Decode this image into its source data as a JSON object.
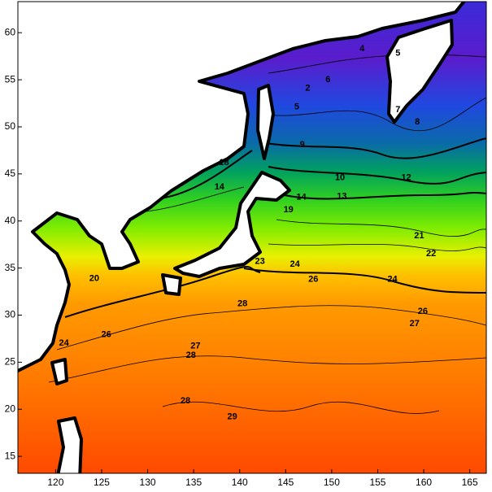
{
  "chart_data": {
    "type": "contour-map",
    "xlim": [
      115.9,
      166.8
    ],
    "ylim": [
      13.2,
      63.3
    ],
    "xticks": [
      120,
      125,
      130,
      135,
      140,
      145,
      150,
      155,
      160,
      165
    ],
    "yticks": [
      15,
      20,
      25,
      30,
      35,
      40,
      45,
      50,
      55,
      60
    ],
    "contour_labels": [
      {
        "x": 147.4,
        "y": 54.1,
        "value": 2
      },
      {
        "x": 153.3,
        "y": 58.3,
        "value": 4
      },
      {
        "x": 157.2,
        "y": 57.8,
        "value": 5
      },
      {
        "x": 146.2,
        "y": 52.1,
        "value": 5
      },
      {
        "x": 149.6,
        "y": 55.0,
        "value": 6
      },
      {
        "x": 157.2,
        "y": 51.8,
        "value": 7
      },
      {
        "x": 159.3,
        "y": 50.5,
        "value": 8
      },
      {
        "x": 146.8,
        "y": 48.1,
        "value": 9
      },
      {
        "x": 150.9,
        "y": 44.6,
        "value": 10
      },
      {
        "x": 158.1,
        "y": 44.6,
        "value": 12
      },
      {
        "x": 151.1,
        "y": 42.6,
        "value": 13
      },
      {
        "x": 137.8,
        "y": 43.6,
        "value": 14
      },
      {
        "x": 146.7,
        "y": 42.5,
        "value": 14
      },
      {
        "x": 138.3,
        "y": 46.2,
        "value": 18
      },
      {
        "x": 145.3,
        "y": 41.2,
        "value": 19
      },
      {
        "x": 124.2,
        "y": 33.9,
        "value": 20
      },
      {
        "x": 159.5,
        "y": 38.4,
        "value": 21
      },
      {
        "x": 160.8,
        "y": 36.5,
        "value": 22
      },
      {
        "x": 142.2,
        "y": 35.7,
        "value": 23
      },
      {
        "x": 146.0,
        "y": 35.4,
        "value": 24
      },
      {
        "x": 156.6,
        "y": 33.8,
        "value": 24
      },
      {
        "x": 148.0,
        "y": 33.8,
        "value": 26
      },
      {
        "x": 159.9,
        "y": 30.4,
        "value": 26
      },
      {
        "x": 159.0,
        "y": 29.1,
        "value": 27
      },
      {
        "x": 125.5,
        "y": 27.9,
        "value": 26
      },
      {
        "x": 135.2,
        "y": 26.7,
        "value": 27
      },
      {
        "x": 140.3,
        "y": 31.2,
        "value": 28
      },
      {
        "x": 134.7,
        "y": 25.7,
        "value": 28
      },
      {
        "x": 134.1,
        "y": 20.9,
        "value": 28
      },
      {
        "x": 139.2,
        "y": 19.2,
        "value": 29
      },
      {
        "x": 120.9,
        "y": 27.0,
        "value": 24
      }
    ]
  }
}
